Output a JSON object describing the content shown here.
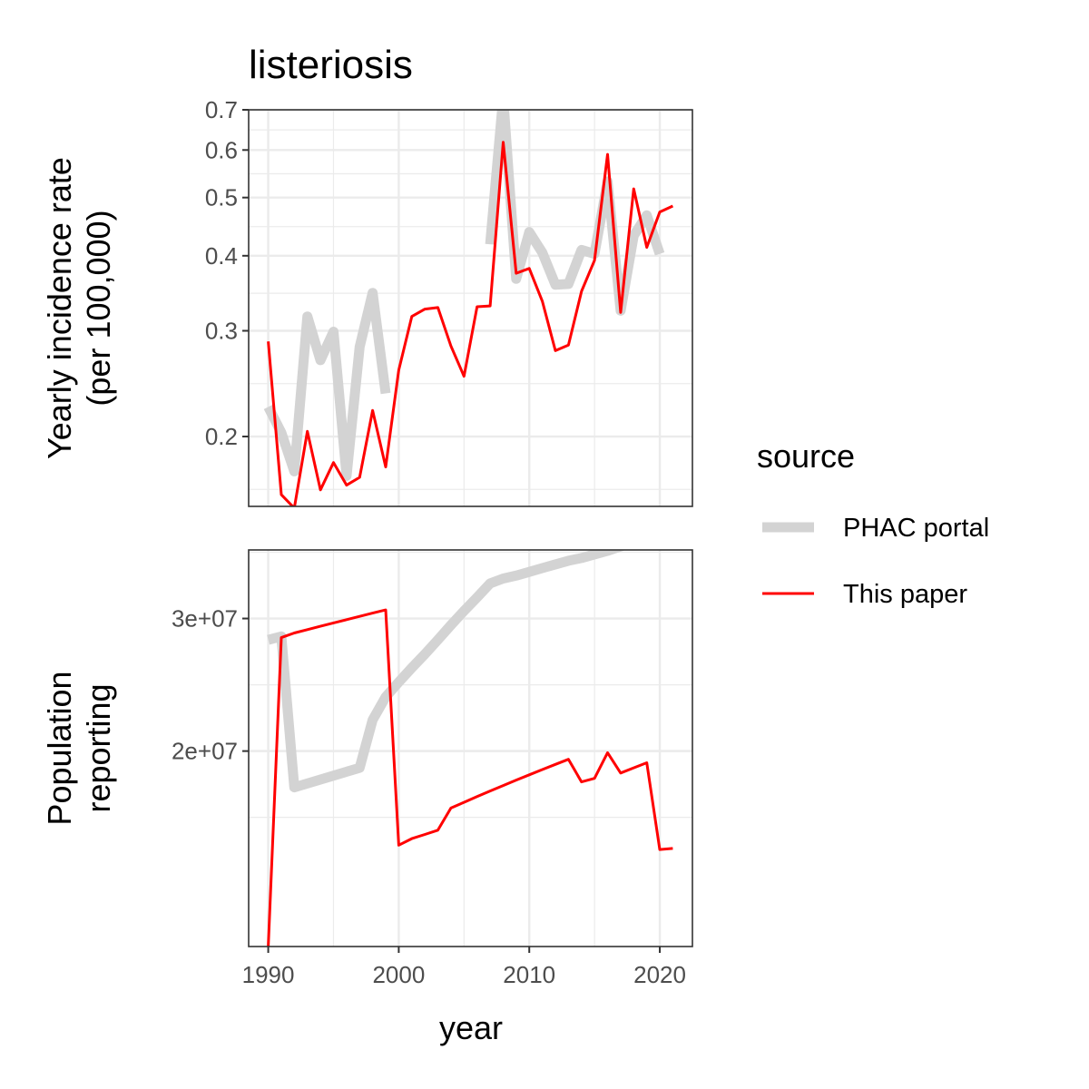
{
  "chart_data": {
    "type": "line",
    "title": "listeriosis",
    "xlabel": "year",
    "x_ticks": [
      1990,
      2000,
      2010,
      2020
    ],
    "xlim": [
      1988.5,
      2022.5
    ],
    "legend": {
      "title": "source",
      "placement": "right",
      "entries": [
        {
          "label": "PHAC portal",
          "color": "#d3d3d3"
        },
        {
          "label": "This paper",
          "color": "#ff0000"
        }
      ]
    },
    "panels": [
      {
        "ylabel_lines": [
          "Yearly incidence rate",
          "(per 100,000)"
        ],
        "y_scale": "log",
        "ylim": [
          0.153,
          0.7
        ],
        "y_ticks": [
          0.2,
          0.3,
          0.4,
          0.5,
          0.6,
          0.7
        ],
        "y_tick_labels": [
          "0.2",
          "0.3",
          "0.4",
          "0.5",
          "0.6",
          "0.7"
        ],
        "series": [
          {
            "name": "PHAC portal",
            "segments": [
              {
                "x": [
                  1990,
                  1991,
                  1992,
                  1993,
                  1994,
                  1995,
                  1996,
                  1997,
                  1998,
                  1999
                ],
                "y": [
                  0.224,
                  0.203,
                  0.175,
                  0.317,
                  0.268,
                  0.299,
                  0.172,
                  0.282,
                  0.347,
                  0.236
                ]
              },
              {
                "x": [
                  2007,
                  2008,
                  2009,
                  2010,
                  2011,
                  2012,
                  2013,
                  2014,
                  2015,
                  2016,
                  2017,
                  2018,
                  2019,
                  2020
                ],
                "y": [
                  0.418,
                  0.735,
                  0.366,
                  0.438,
                  0.405,
                  0.358,
                  0.359,
                  0.409,
                  0.403,
                  0.532,
                  0.324,
                  0.432,
                  0.467,
                  0.403
                ]
              }
            ]
          },
          {
            "name": "This paper",
            "segments": [
              {
                "x": [
                  1990,
                  1991,
                  1992,
                  1993,
                  1994,
                  1995,
                  1996,
                  1997,
                  1998,
                  1999,
                  2000,
                  2001,
                  2002,
                  2003,
                  2004,
                  2005,
                  2006,
                  2007,
                  2008,
                  2009,
                  2010,
                  2011,
                  2012,
                  2013,
                  2014,
                  2015,
                  2016,
                  2017,
                  2018,
                  2019,
                  2020,
                  2021
                ],
                "y": [
                  0.288,
                  0.16,
                  0.152,
                  0.204,
                  0.163,
                  0.181,
                  0.166,
                  0.171,
                  0.221,
                  0.178,
                  0.258,
                  0.317,
                  0.326,
                  0.328,
                  0.283,
                  0.252,
                  0.329,
                  0.33,
                  0.618,
                  0.374,
                  0.381,
                  0.336,
                  0.278,
                  0.284,
                  0.349,
                  0.393,
                  0.59,
                  0.322,
                  0.517,
                  0.413,
                  0.473,
                  0.484
                ]
              }
            ]
          }
        ]
      },
      {
        "ylabel_lines": [
          "Population",
          "reporting"
        ],
        "y_scale": "log",
        "ylim": [
          11000000,
          37000000
        ],
        "y_ticks": [
          20000000,
          30000000
        ],
        "y_tick_labels": [
          "2e+07",
          "3e+07"
        ],
        "series": [
          {
            "name": "PHAC portal",
            "segments": [
              {
                "x": [
                  1990,
                  1991,
                  1992,
                  1997,
                  1998,
                  1999,
                  2000,
                  2001,
                  2002,
                  2003,
                  2004,
                  2005,
                  2006,
                  2007,
                  2008,
                  2009,
                  2010,
                  2011,
                  2012,
                  2013,
                  2014,
                  2015,
                  2016,
                  2017,
                  2018,
                  2019,
                  2020
                ],
                "y": [
                  28100000,
                  28400000,
                  17900000,
                  19000000,
                  22000000,
                  23600000,
                  24700000,
                  25800000,
                  26900000,
                  28100000,
                  29400000,
                  30700000,
                  32000000,
                  33400000,
                  33900000,
                  34200000,
                  34600000,
                  35000000,
                  35400000,
                  35800000,
                  36100000,
                  36500000,
                  36900000,
                  37400000,
                  38000000,
                  38500000,
                  38900000
                ]
              }
            ]
          },
          {
            "name": "This paper",
            "segments": [
              {
                "x": [
                  1990,
                  1991,
                  1992,
                  1993,
                  1994,
                  1995,
                  1996,
                  1997,
                  1998,
                  1999,
                  2000,
                  2001,
                  2002,
                  2003,
                  2004,
                  2005,
                  2006,
                  2007,
                  2008,
                  2009,
                  2010,
                  2011,
                  2012,
                  2013,
                  2014,
                  2015,
                  2016,
                  2017,
                  2018,
                  2019,
                  2020,
                  2021
                ],
                "y": [
                  11000000,
                  28300000,
                  28700000,
                  29000000,
                  29300000,
                  29600000,
                  29900000,
                  30200000,
                  30500000,
                  30800000,
                  15000000,
                  15300000,
                  15500000,
                  15700000,
                  16800000,
                  17100000,
                  17400000,
                  17700000,
                  18000000,
                  18300000,
                  18600000,
                  18900000,
                  19200000,
                  19500000,
                  18200000,
                  18400000,
                  19900000,
                  18700000,
                  19000000,
                  19300000,
                  14800000,
                  14850000
                ]
              }
            ]
          }
        ]
      }
    ]
  }
}
